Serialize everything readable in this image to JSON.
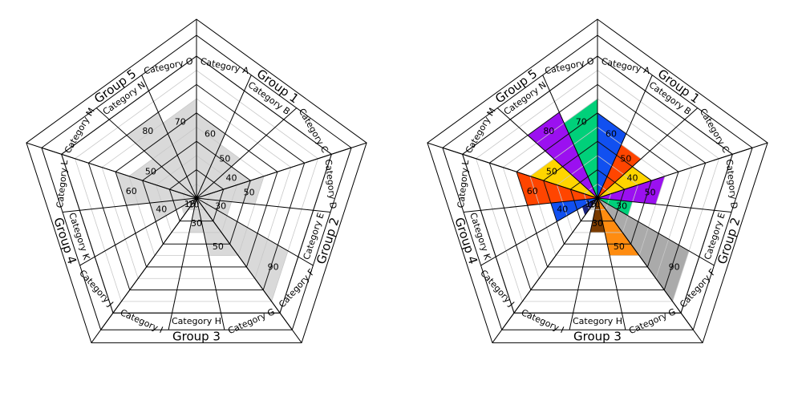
{
  "chart_data": [
    {
      "type": "radar",
      "style": "single-color",
      "fill": "#d9d9d9",
      "groups": [
        "Group 1",
        "Group 2",
        "Group 3",
        "Group 4",
        "Group 5"
      ],
      "categories": [
        "Category A",
        "Category B",
        "Category C",
        "Category D",
        "Category E",
        "Category F",
        "Category G",
        "Category H",
        "Category I",
        "Category J",
        "Category K",
        "Category L",
        "Category M",
        "Category N",
        "Category O"
      ],
      "values": [
        60,
        50,
        40,
        50,
        30,
        90,
        50,
        30,
        10,
        15,
        40,
        60,
        50,
        80,
        70
      ],
      "value_labels": [
        "60",
        "50",
        "40",
        "50",
        "30",
        "90",
        "50",
        "30",
        "10",
        "15",
        "40",
        "60",
        "50",
        "80",
        "70"
      ],
      "ylim": [
        0,
        100
      ]
    },
    {
      "type": "radar",
      "style": "multi-color",
      "groups": [
        "Group 1",
        "Group 2",
        "Group 3",
        "Group 4",
        "Group 5"
      ],
      "categories": [
        "Category A",
        "Category B",
        "Category C",
        "Category D",
        "Category E",
        "Category F",
        "Category G",
        "Category H",
        "Category I",
        "Category J",
        "Category K",
        "Category L",
        "Category M",
        "Category N",
        "Category O"
      ],
      "values": [
        60,
        50,
        40,
        50,
        30,
        90,
        50,
        30,
        10,
        15,
        40,
        60,
        50,
        80,
        70
      ],
      "value_labels": [
        "60",
        "50",
        "40",
        "50",
        "30",
        "90",
        "50",
        "30",
        "10",
        "15",
        "40",
        "60",
        "50",
        "80",
        "70"
      ],
      "colors": [
        "#1150f0",
        "#ff4500",
        "#ffd500",
        "#9b10f0",
        "#00d07a",
        "#aaaaaa",
        "#ff8c10",
        "#7a3b00",
        "#d0d0d0",
        "#1a237e",
        "#1150f0",
        "#ff4500",
        "#ffd500",
        "#9b10f0",
        "#00d07a"
      ],
      "ylim": [
        0,
        100
      ]
    }
  ]
}
